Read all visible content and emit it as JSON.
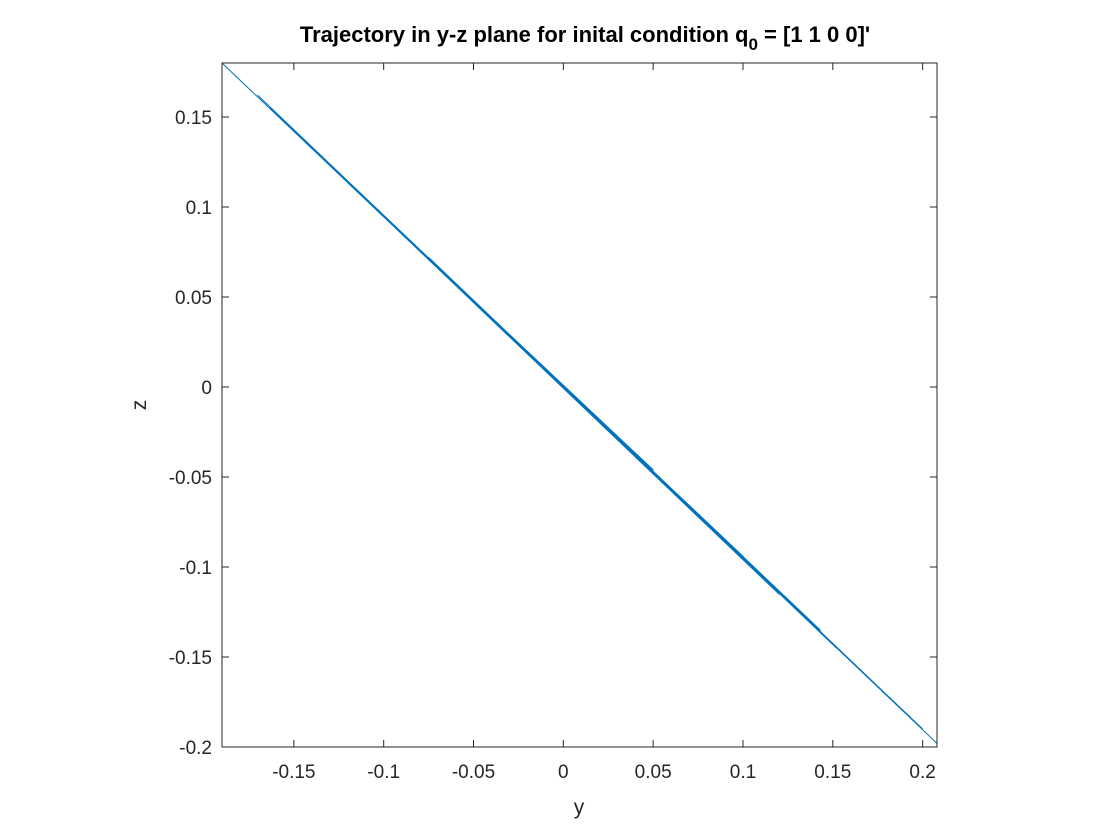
{
  "chart_data": {
    "type": "line",
    "title_main": "Trajectory in y-z plane for inital condition q",
    "title_sub": "0",
    "title_tail": " = [1 1 0 0]'",
    "xlabel": "y",
    "ylabel": "z",
    "xlim": [
      -0.19,
      0.208
    ],
    "ylim": [
      -0.2,
      0.18
    ],
    "xticks": [
      -0.15,
      -0.1,
      -0.05,
      0,
      0.05,
      0.1,
      0.15,
      0.2
    ],
    "xtick_labels": [
      "-0.15",
      "-0.1",
      "-0.05",
      "0",
      "0.05",
      "0.1",
      "0.15",
      "0.2"
    ],
    "yticks": [
      -0.2,
      -0.15,
      -0.1,
      -0.05,
      0,
      0.05,
      0.1,
      0.15
    ],
    "ytick_labels": [
      "-0.2",
      "-0.15",
      "-0.1",
      "-0.05",
      "0",
      "0.05",
      "0.1",
      "0.15"
    ],
    "grid": false,
    "box": true,
    "series": [
      {
        "color": "#0072BD",
        "x": [
          -0.19,
          0.208,
          -0.163,
          0.143,
          -0.128,
          0.118,
          -0.1,
          0.093,
          -0.075,
          0.07,
          -0.05,
          0.05,
          -0.03,
          0.028,
          -0.048,
          0.078,
          -0.09,
          0.1,
          -0.112,
          0.12,
          -0.14,
          0.152,
          -0.17,
          0.2
        ],
        "y": [
          0.18,
          -0.198,
          0.155,
          -0.135,
          0.122,
          -0.112,
          0.095,
          -0.088,
          0.072,
          -0.066,
          0.048,
          -0.046,
          0.028,
          -0.026,
          0.045,
          -0.074,
          0.085,
          -0.094,
          0.106,
          -0.115,
          0.133,
          -0.145,
          0.162,
          -0.19
        ]
      }
    ]
  }
}
